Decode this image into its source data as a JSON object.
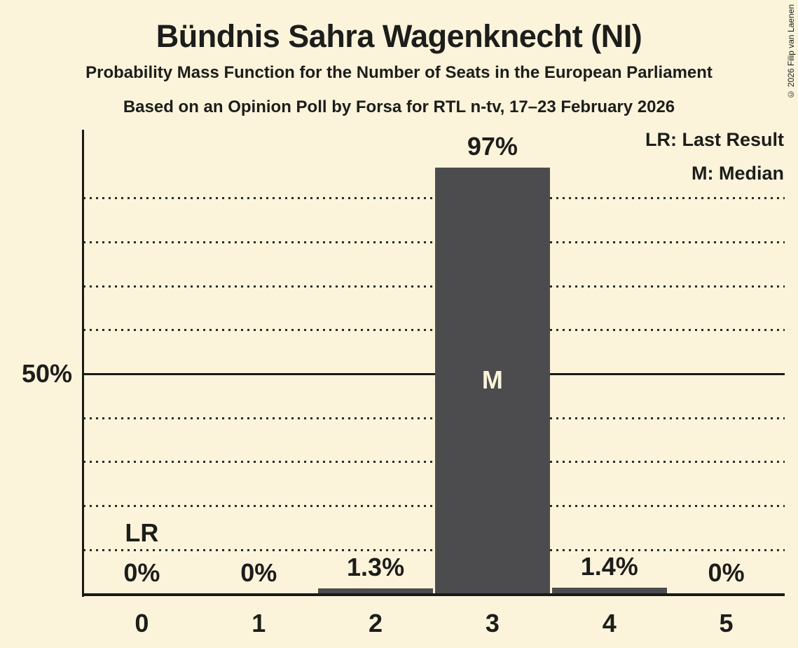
{
  "title": "Bündnis Sahra Wagenknecht (NI)",
  "subtitle": "Probability Mass Function for the Number of Seats in the European Parliament",
  "source_line": "Based on an Opinion Poll by Forsa for RTL n-tv, 17–23 February 2026",
  "copyright": "© 2026 Filip van Laenen",
  "legend": {
    "lr_label": "LR: Last Result",
    "m_label": "M: Median"
  },
  "chart_data": {
    "type": "bar",
    "title": "Bündnis Sahra Wagenknecht (NI)",
    "categories": [
      "0",
      "1",
      "2",
      "3",
      "4",
      "5"
    ],
    "values": [
      0,
      0,
      1.3,
      97,
      1.4,
      0
    ],
    "value_labels": [
      "0%",
      "0%",
      "1.3%",
      "97%",
      "1.4%",
      "0%"
    ],
    "ylim": [
      0,
      100
    ],
    "ytick": {
      "value": 50,
      "label": "50%"
    },
    "minor_gridlines_pct": [
      10,
      20,
      30,
      40,
      60,
      70,
      80,
      90
    ],
    "major_gridline_pct": 50,
    "grid": "dotted-horizontal",
    "legend_position": "top-right",
    "annotations": [
      {
        "label": "LR",
        "category": "0",
        "meaning": "Last Result"
      },
      {
        "label": "M",
        "category": "3",
        "meaning": "Median"
      }
    ],
    "colors": {
      "background": "#FBF4DB",
      "bar": "#4C4C4E",
      "text": "#1D1D1B",
      "bar_label_text": "#FAF3DA",
      "axis": "#1A1A18"
    }
  }
}
